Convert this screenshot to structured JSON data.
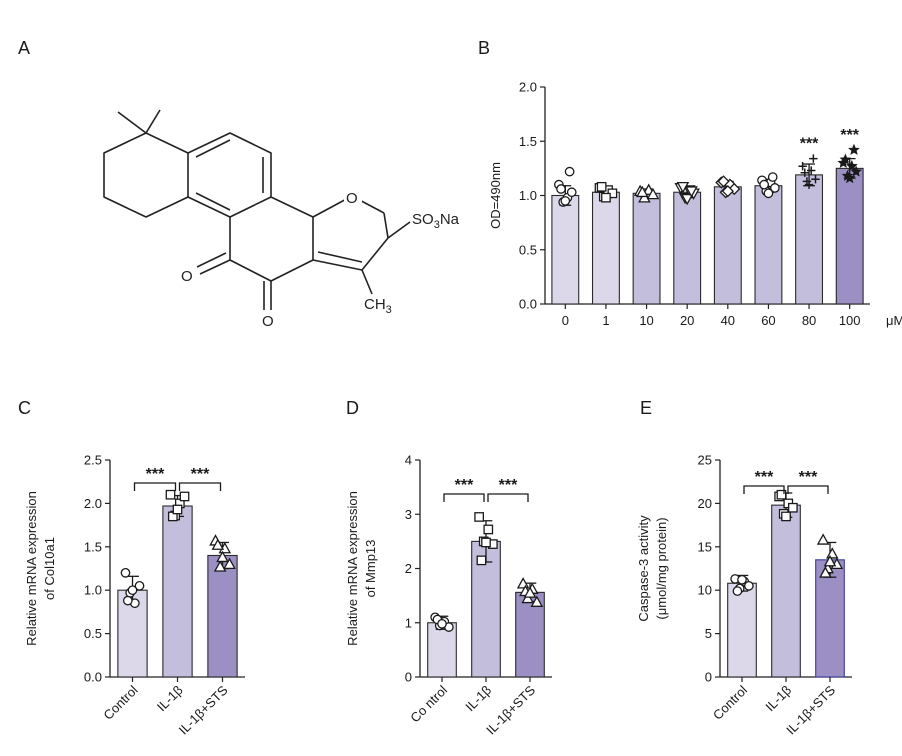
{
  "panels": {
    "a": "A",
    "b": "B",
    "c": "C",
    "d": "D",
    "e": "E"
  },
  "structure": {
    "so3na": "SO",
    "so3na_sub": "3",
    "so3na_tail": "Na",
    "ch3": "CH",
    "ch3_sub": "3",
    "o_ring": "O",
    "o_left": "O",
    "o_right": "O"
  },
  "colors": {
    "bar_light": "#dcd8ea",
    "bar_mid": "#c4bedd",
    "bar_dark": "#9c8fc4",
    "axis": "#222222",
    "e_dark_edge": "#3a3a9a"
  },
  "chart_data": [
    {
      "id": "B",
      "type": "bar",
      "ylabel": "OD=490nm",
      "xunit": "μM",
      "categories": [
        "0",
        "1",
        "10",
        "20",
        "40",
        "60",
        "80",
        "100"
      ],
      "values": [
        1.0,
        1.03,
        1.02,
        1.03,
        1.08,
        1.09,
        1.19,
        1.25
      ],
      "errors": [
        0.09,
        0.05,
        0.04,
        0.05,
        0.05,
        0.06,
        0.1,
        0.09
      ],
      "markers": [
        "circle",
        "square",
        "triangle",
        "triangle-down",
        "diamond",
        "circle",
        "plus",
        "star"
      ],
      "points": [
        [
          1.1,
          0.94,
          0.98,
          1.03,
          1.06,
          0.95,
          1.22
        ],
        [
          1.07,
          0.99,
          1.05,
          1.02,
          1.08,
          0.98
        ],
        [
          1.04,
          0.98,
          1.05,
          1.01,
          1.03
        ],
        [
          1.07,
          0.98,
          1.05,
          1.02,
          1.08,
          0.97,
          1.04
        ],
        [
          1.12,
          1.03,
          1.1,
          1.06,
          1.13,
          1.04
        ],
        [
          1.14,
          1.04,
          1.12,
          1.07,
          1.1,
          1.02,
          1.17
        ],
        [
          1.27,
          1.13,
          1.23,
          1.15,
          1.21,
          1.1,
          1.34
        ],
        [
          1.3,
          1.18,
          1.27,
          1.22,
          1.33,
          1.16,
          1.42
        ]
      ],
      "ylim": [
        0,
        2.0
      ],
      "yticks": [
        "0.0",
        "0.5",
        "1.0",
        "1.5",
        "2.0"
      ],
      "annotations": [
        {
          "category": "80",
          "text": "***"
        },
        {
          "category": "100",
          "text": "***"
        }
      ]
    },
    {
      "id": "C",
      "type": "bar",
      "ylabel_lines": [
        "Relative mRNA expression",
        "of  Col10a1"
      ],
      "categories": [
        "Control",
        "IL-1β",
        "IL-1β+STS"
      ],
      "values": [
        1.0,
        1.97,
        1.4
      ],
      "errors": [
        0.16,
        0.12,
        0.15
      ],
      "markers": [
        "circle",
        "square",
        "triangle"
      ],
      "points": [
        [
          1.2,
          0.97,
          0.85,
          1.05,
          0.88,
          1.0
        ],
        [
          2.1,
          1.86,
          2.0,
          2.08,
          1.85,
          1.93
        ],
        [
          1.57,
          1.27,
          1.48,
          1.3,
          1.52,
          1.38
        ]
      ],
      "ylim": [
        0,
        2.5
      ],
      "yticks": [
        "0.0",
        "0.5",
        "1.0",
        "1.5",
        "2.0",
        "2.5"
      ],
      "significance": [
        {
          "from": 0,
          "to": 1,
          "text": "***"
        },
        {
          "from": 1,
          "to": 2,
          "text": "***"
        }
      ]
    },
    {
      "id": "D",
      "type": "bar",
      "ylabel_lines": [
        "Relative mRNA expression",
        "of  Mmp13"
      ],
      "categories": [
        "Co ntrol",
        "IL-1β",
        "IL-1β+STS"
      ],
      "values": [
        1.0,
        2.5,
        1.56
      ],
      "errors": [
        0.12,
        0.38,
        0.17
      ],
      "markers": [
        "circle",
        "square",
        "triangle"
      ],
      "points": [
        [
          1.1,
          0.95,
          1.02,
          0.92,
          1.06,
          0.98
        ],
        [
          2.95,
          2.5,
          2.72,
          2.45,
          2.15,
          2.48
        ],
        [
          1.72,
          1.45,
          1.62,
          1.38,
          1.58,
          1.55
        ]
      ],
      "ylim": [
        0,
        4
      ],
      "yticks": [
        "0",
        "1",
        "2",
        "3",
        "4"
      ],
      "significance": [
        {
          "from": 0,
          "to": 1,
          "text": "***"
        },
        {
          "from": 1,
          "to": 2,
          "text": "***"
        }
      ]
    },
    {
      "id": "E",
      "type": "bar",
      "ylabel_lines": [
        "Caspase-3 activity",
        "(μmol/mg protein)"
      ],
      "categories": [
        "Control",
        "IL-1β",
        "IL-1β+STS"
      ],
      "values": [
        10.8,
        19.8,
        13.5
      ],
      "errors": [
        0.9,
        1.4,
        2.0
      ],
      "markers": [
        "circle",
        "square",
        "triangle"
      ],
      "points": [
        [
          11.3,
          10.2,
          11.0,
          10.5,
          9.9,
          11.2
        ],
        [
          20.8,
          18.8,
          20.0,
          19.5,
          21.0,
          18.5
        ],
        [
          15.8,
          12.5,
          14.2,
          13.0,
          12.0,
          13.3
        ]
      ],
      "ylim": [
        0,
        25
      ],
      "yticks": [
        "0",
        "5",
        "10",
        "15",
        "20",
        "25"
      ],
      "significance": [
        {
          "from": 0,
          "to": 1,
          "text": "***"
        },
        {
          "from": 1,
          "to": 2,
          "text": "***"
        }
      ]
    }
  ]
}
